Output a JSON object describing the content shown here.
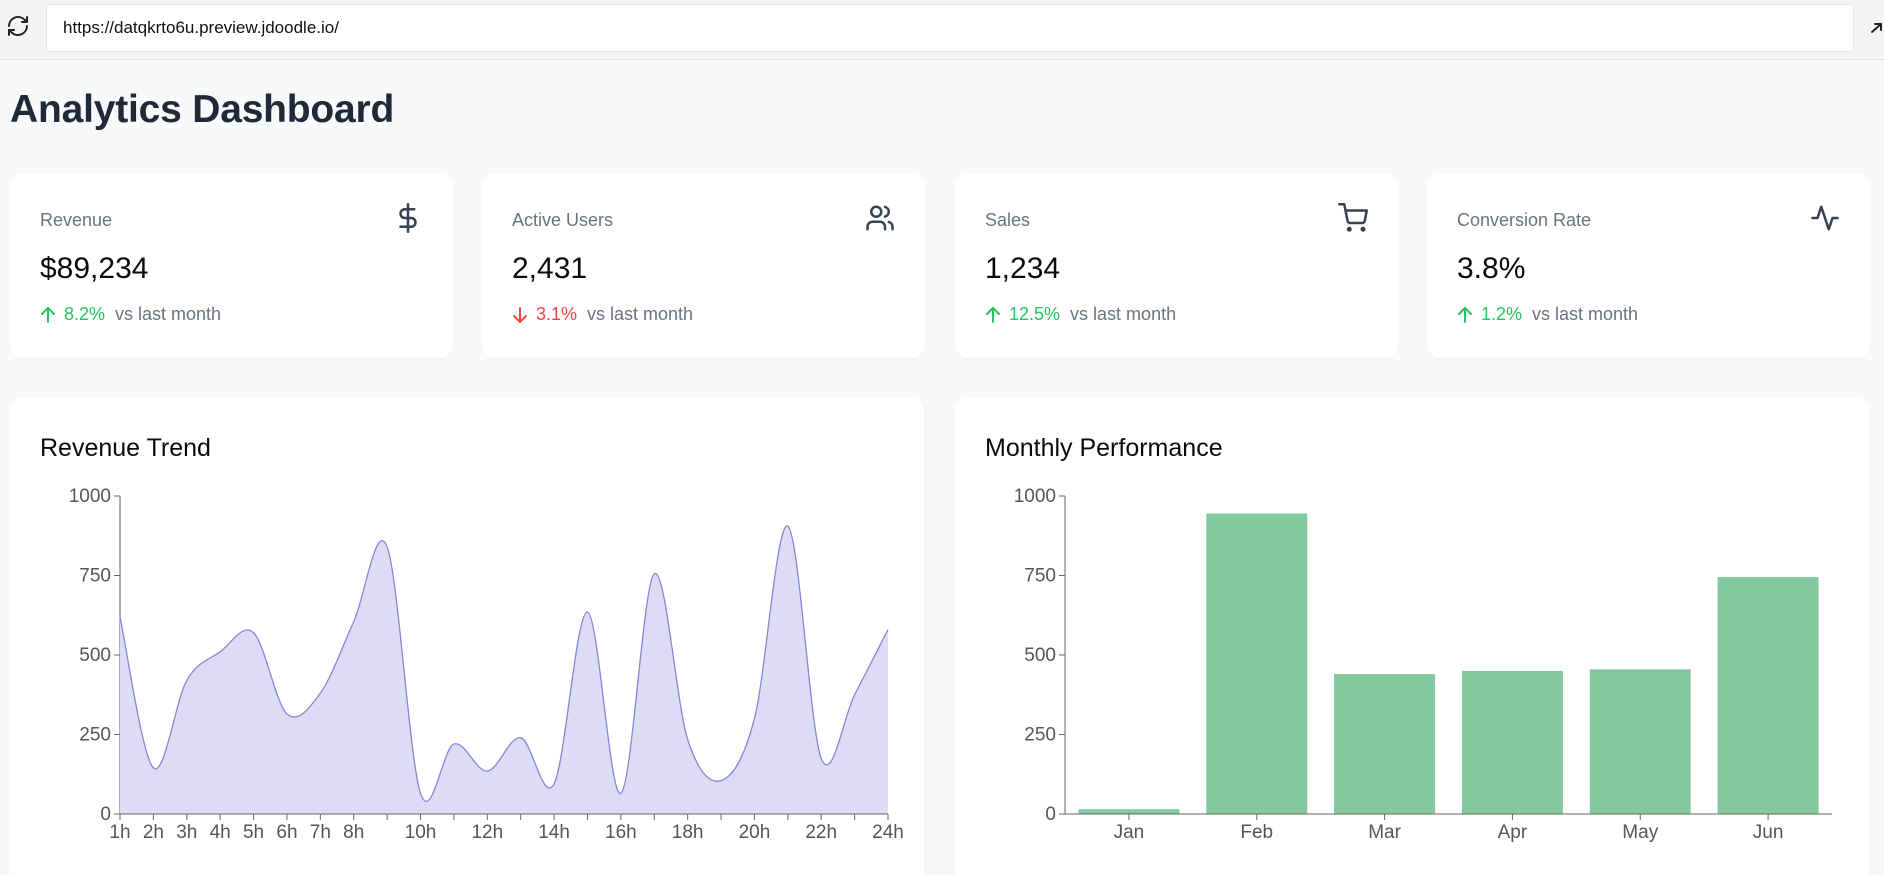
{
  "browser": {
    "url": "https://datqkrto6u.preview.jdoodle.io/",
    "reload_icon": "reload-icon",
    "corner_icon": "arrow-up-right-icon"
  },
  "page": {
    "title": "Analytics Dashboard"
  },
  "stats": [
    {
      "label": "Revenue",
      "value": "$89,234",
      "change": "8.2%",
      "direction": "up",
      "comparison": "vs last month",
      "icon": "dollar-icon"
    },
    {
      "label": "Active Users",
      "value": "2,431",
      "change": "3.1%",
      "direction": "down",
      "comparison": "vs last month",
      "icon": "users-icon"
    },
    {
      "label": "Sales",
      "value": "1,234",
      "change": "12.5%",
      "direction": "up",
      "comparison": "vs last month",
      "icon": "cart-icon"
    },
    {
      "label": "Conversion Rate",
      "value": "3.8%",
      "change": "1.2%",
      "direction": "up",
      "comparison": "vs last month",
      "icon": "activity-icon"
    }
  ],
  "colors": {
    "up": "#22c55e",
    "down": "#ef4444",
    "area_fill": "#dcdaf3",
    "area_stroke": "#8884d8",
    "bar_fill": "#82ca9d",
    "axis": "#666666"
  },
  "charts": {
    "revenue_trend": {
      "title": "Revenue Trend"
    },
    "monthly_performance": {
      "title": "Monthly Performance"
    }
  },
  "chart_data": [
    {
      "type": "area",
      "title": "Revenue Trend",
      "x": [
        "1h",
        "2h",
        "3h",
        "4h",
        "5h",
        "6h",
        "7h",
        "8h",
        "9h",
        "10h",
        "11h",
        "12h",
        "13h",
        "14h",
        "15h",
        "16h",
        "17h",
        "18h",
        "19h",
        "20h",
        "21h",
        "22h",
        "23h",
        "24h"
      ],
      "x_tick_labels": [
        "1h",
        "2h",
        "3h",
        "4h",
        "5h",
        "6h",
        "7h",
        "8h",
        "10h",
        "12h",
        "14h",
        "16h",
        "18h",
        "20h",
        "22h",
        "24h"
      ],
      "values": [
        620,
        145,
        420,
        510,
        570,
        315,
        380,
        605,
        840,
        65,
        220,
        135,
        240,
        95,
        635,
        65,
        755,
        235,
        105,
        300,
        905,
        175,
        375,
        580
      ],
      "ylim": [
        0,
        1000
      ],
      "yticks": [
        0,
        250,
        500,
        750,
        1000
      ],
      "grid": false
    },
    {
      "type": "bar",
      "title": "Monthly Performance",
      "categories": [
        "Jan",
        "Feb",
        "Mar",
        "Apr",
        "May",
        "Jun"
      ],
      "values": [
        15,
        945,
        440,
        450,
        455,
        745
      ],
      "ylim": [
        0,
        1000
      ],
      "yticks": [
        0,
        250,
        500,
        750,
        1000
      ],
      "grid": false
    }
  ]
}
